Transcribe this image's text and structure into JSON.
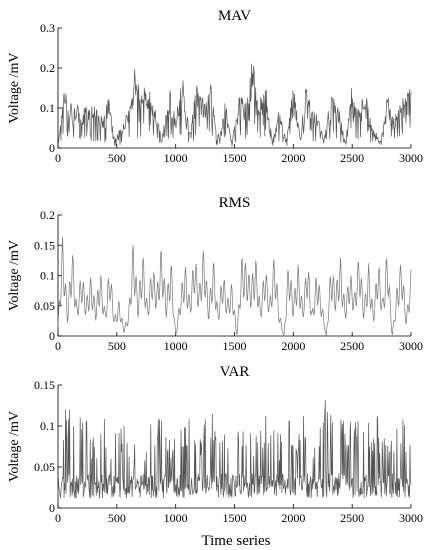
{
  "chart_data": [
    {
      "type": "line",
      "title": "MAV",
      "xlabel": "",
      "ylabel": "Voltage /mV",
      "xlim": [
        0,
        3000
      ],
      "ylim": [
        0,
        0.3
      ],
      "xticks": [
        0,
        500,
        1000,
        1500,
        2000,
        2500,
        3000
      ],
      "xtick_labels": [
        "0",
        "500",
        "1000",
        "1500",
        "2000",
        "2500",
        "3000"
      ],
      "yticks": [
        0,
        0.1,
        0.2,
        0.3
      ],
      "ytick_labels": [
        "0",
        "0.1",
        "0.2",
        "0.3"
      ],
      "color": "#555555",
      "series": [
        {
          "x": [
            0,
            50,
            120,
            200,
            300,
            380,
            430,
            480,
            540,
            600,
            650,
            700,
            760,
            820,
            880,
            950,
            1000,
            1060,
            1120,
            1180,
            1240,
            1300,
            1350,
            1420,
            1480,
            1540,
            1600,
            1660,
            1700,
            1760,
            1820,
            1880,
            1940,
            2000,
            2060,
            2100,
            2150,
            2200,
            2260,
            2320,
            2380,
            2440,
            2500,
            2560,
            2620,
            2680,
            2740,
            2800,
            2860,
            2920,
            2980
          ],
          "y": [
            0.01,
            0.17,
            0.12,
            0.1,
            0.11,
            0.08,
            0.13,
            0.02,
            0.06,
            0.1,
            0.21,
            0.14,
            0.16,
            0.12,
            0.02,
            0.15,
            0.08,
            0.18,
            0.05,
            0.16,
            0.12,
            0.17,
            0.02,
            0.12,
            0.02,
            0.14,
            0.12,
            0.25,
            0.1,
            0.18,
            0.02,
            0.1,
            0.02,
            0.17,
            0.02,
            0.16,
            0.12,
            0.09,
            0.02,
            0.14,
            0.11,
            0.02,
            0.17,
            0.12,
            0.13,
            0.05,
            0.02,
            0.14,
            0.08,
            0.12,
            0.15
          ]
        }
      ]
    },
    {
      "type": "line",
      "title": "RMS",
      "xlabel": "",
      "ylabel": "Voltage /mV",
      "xlim": [
        0,
        3000
      ],
      "ylim": [
        0,
        0.2
      ],
      "xticks": [
        0,
        500,
        1000,
        1500,
        2000,
        2500,
        3000
      ],
      "xtick_labels": [
        "0",
        "500",
        "1000",
        "1500",
        "2000",
        "2500",
        "3000"
      ],
      "yticks": [
        0,
        0.05,
        0.1,
        0.15,
        0.2
      ],
      "ytick_labels": [
        "0",
        "0.05",
        "0.1",
        "0.15",
        "0.2"
      ],
      "color": "#777777",
      "series": [
        {
          "x": [
            0,
            40,
            80,
            120,
            160,
            200,
            240,
            280,
            320,
            360,
            400,
            440,
            480,
            520,
            560,
            600,
            640,
            680,
            720,
            760,
            800,
            840,
            880,
            920,
            960,
            1000,
            1040,
            1080,
            1120,
            1160,
            1200,
            1240,
            1280,
            1320,
            1360,
            1400,
            1440,
            1480,
            1520,
            1560,
            1600,
            1640,
            1680,
            1720,
            1760,
            1800,
            1840,
            1880,
            1920,
            1960,
            2000,
            2040,
            2080,
            2120,
            2160,
            2200,
            2240,
            2280,
            2320,
            2360,
            2400,
            2440,
            2480,
            2520,
            2560,
            2600,
            2640,
            2680,
            2720,
            2760,
            2800,
            2840,
            2880,
            2920,
            2960,
            3000
          ],
          "y": [
            0.02,
            0.17,
            0.04,
            0.15,
            0.05,
            0.11,
            0.06,
            0.1,
            0.05,
            0.11,
            0.04,
            0.12,
            0.03,
            0.06,
            0.01,
            0.04,
            0.16,
            0.06,
            0.14,
            0.05,
            0.12,
            0.08,
            0.15,
            0.06,
            0.13,
            0.0,
            0.07,
            0.12,
            0.06,
            0.14,
            0.08,
            0.15,
            0.05,
            0.13,
            0.04,
            0.11,
            0.06,
            0.09,
            0.0,
            0.13,
            0.12,
            0.09,
            0.13,
            0.05,
            0.12,
            0.06,
            0.14,
            0.04,
            0.0,
            0.13,
            0.06,
            0.12,
            0.05,
            0.13,
            0.04,
            0.11,
            0.06,
            0.0,
            0.12,
            0.08,
            0.13,
            0.05,
            0.11,
            0.07,
            0.14,
            0.05,
            0.12,
            0.04,
            0.13,
            0.06,
            0.15,
            0.0,
            0.08,
            0.13,
            0.03,
            0.11
          ]
        }
      ]
    },
    {
      "type": "line",
      "title": "VAR",
      "xlabel": "Time series",
      "ylabel": "Voltage /mV",
      "xlim": [
        0,
        3000
      ],
      "ylim": [
        0,
        0.15
      ],
      "xticks": [
        0,
        500,
        1000,
        1500,
        2000,
        2500,
        3000
      ],
      "xtick_labels": [
        "0",
        "500",
        "1000",
        "1500",
        "2000",
        "2500",
        "3000"
      ],
      "yticks": [
        0,
        0.05,
        0.1,
        0.15
      ],
      "ytick_labels": [
        "0",
        "0.05",
        "0.1",
        "0.15"
      ],
      "color": "#555555",
      "series": [
        {
          "x": [
            0,
            20,
            60,
            120,
            200,
            260,
            320,
            400,
            460,
            520,
            580,
            640,
            660,
            700,
            760,
            820,
            850,
            900,
            960,
            1020,
            1080,
            1140,
            1200,
            1260,
            1320,
            1380,
            1440,
            1500,
            1560,
            1620,
            1680,
            1740,
            1800,
            1860,
            1920,
            1980,
            2040,
            2100,
            2160,
            2220,
            2280,
            2340,
            2400,
            2460,
            2520,
            2580,
            2640,
            2700,
            2760,
            2820,
            2880,
            2940,
            3000
          ],
          "y": [
            0.005,
            0.01,
            0.12,
            0.125,
            0.13,
            0.1,
            0.09,
            0.12,
            0.08,
            0.11,
            0.1,
            0.1,
            0.06,
            0.03,
            0.12,
            0.09,
            0.138,
            0.11,
            0.09,
            0.13,
            0.1,
            0.12,
            0.09,
            0.12,
            0.13,
            0.1,
            0.11,
            0.09,
            0.1,
            0.11,
            0.09,
            0.12,
            0.11,
            0.09,
            0.1,
            0.12,
            0.1,
            0.12,
            0.09,
            0.11,
            0.152,
            0.1,
            0.12,
            0.09,
            0.13,
            0.1,
            0.11,
            0.12,
            0.09,
            0.11,
            0.1,
            0.12,
            0.08
          ]
        }
      ]
    }
  ]
}
